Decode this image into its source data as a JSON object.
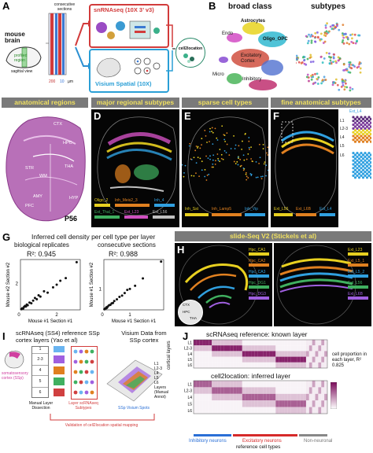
{
  "panelA": {
    "letter": "A",
    "mouse_brain": "mouse brain",
    "profiled_region": "profiled region",
    "sagittal_view": "sagittal view",
    "consecutive_sections": "consecutive sections",
    "dim1": "200",
    "dim2": "10",
    "dim_unit": "µm",
    "snrnaseq": "snRNAseq (10X 3’ v3)",
    "visium": "Visium Spatial (10X)",
    "cell2location": "cell2location"
  },
  "panelB": {
    "letter": "B",
    "title_left": "broad class",
    "title_right": "subtypes",
    "labels": [
      "Astrocytes",
      "Endo",
      "Oligo_OPC",
      "Excitatory Cortex",
      "Micro",
      "Inhibitory"
    ]
  },
  "row2": {
    "headers": [
      "anatomical regions",
      "major regional subtypes",
      "sparse cell types",
      "fine anatomical subtypes"
    ],
    "letters": [
      "C",
      "D",
      "E",
      "F"
    ],
    "panelC_regions": [
      "CTX",
      "HPC",
      "STR",
      "WM",
      "THA",
      "AMY",
      "HYP",
      "PFC"
    ],
    "panelC_age": "P56",
    "panelD_legend": [
      "Oligo_2",
      "Inh_Meis2_3",
      "Inh_4",
      "Ext_Thal_1",
      "Ext_L23",
      "Ext_L56"
    ],
    "panelE_legend": [
      "Inh_Sst",
      "Inh_Lamp5",
      "Inh_Vip"
    ],
    "panelF_legend": [
      "Ext_L56",
      "Ext_L6B",
      "Ext_L4"
    ],
    "panelF_inset_title": "Ext_L4",
    "panelF_layers": [
      "L1",
      "L2-3",
      "L4",
      "L5",
      "L6"
    ]
  },
  "panelG": {
    "letter": "G",
    "title": "Inferred cell density per cell type per layer",
    "left_title": "biological replicates",
    "right_title": "consecutive sections",
    "left_r2": "R²: 0.945",
    "right_r2": "R²: 0.988",
    "left_ylabel": "Mouse #2 Section #2",
    "left_xlabel": "Mouse #1 Section #1",
    "right_ylabel": "Mouse #1 Section #2",
    "right_xlabel": "Mouse #1 Section #1",
    "ticks_left": [
      "0",
      "2"
    ],
    "ticks_right": [
      "0",
      "1"
    ]
  },
  "chart_data": [
    {
      "type": "scatter",
      "title": "biological replicates",
      "xlabel": "Mouse #1 Section #1",
      "ylabel": "Mouse #2 Section #2",
      "x": [
        0.05,
        0.1,
        0.15,
        0.2,
        0.25,
        0.3,
        0.35,
        0.4,
        0.5,
        0.6,
        0.7,
        0.8,
        0.9,
        1.0,
        1.1,
        1.3,
        1.5,
        1.8,
        2.0,
        2.2,
        2.5,
        3.1
      ],
      "y": [
        0.05,
        0.12,
        0.1,
        0.22,
        0.3,
        0.25,
        0.4,
        0.35,
        0.55,
        0.5,
        0.7,
        0.9,
        0.8,
        1.1,
        1.0,
        1.4,
        1.3,
        1.7,
        1.9,
        2.2,
        2.4,
        3.6
      ],
      "xlim": [
        0,
        3.3
      ],
      "ylim": [
        0,
        3.8
      ]
    },
    {
      "type": "scatter",
      "title": "consecutive sections",
      "xlabel": "Mouse #1 Section #1",
      "ylabel": "Mouse #1 Section #2",
      "x": [
        0.02,
        0.05,
        0.08,
        0.1,
        0.12,
        0.15,
        0.2,
        0.25,
        0.3,
        0.35,
        0.4,
        0.5,
        0.6,
        0.7,
        0.8,
        0.9,
        1.0,
        1.2,
        1.5,
        2.2
      ],
      "y": [
        0.03,
        0.06,
        0.07,
        0.12,
        0.1,
        0.16,
        0.22,
        0.24,
        0.31,
        0.33,
        0.42,
        0.5,
        0.62,
        0.68,
        0.8,
        0.95,
        1.0,
        1.15,
        1.5,
        2.3
      ],
      "xlim": [
        0,
        2.3
      ],
      "ylim": [
        0,
        2.4
      ]
    }
  ],
  "panelH": {
    "letter": "H",
    "header": "slide-Seq V2 (Stickels et al)",
    "left_legend": [
      "Hpc_CA1",
      "Hpc_CA2",
      "Hpc_CA3",
      "Hpc_DG1",
      "Hpc_DG3"
    ],
    "right_legend": [
      "Ext_L23",
      "Ext_L5_1",
      "Ext_L5_2",
      "Ext_L56",
      "Ext_L6B"
    ],
    "inset_labels": [
      "CTX",
      "HPC",
      "THA"
    ]
  },
  "panelI": {
    "letter": "I",
    "title": "scRNAseq (SS4) reference SSp cortex layers (Yao et al)",
    "visium_title": "Visium Data from SSp cortex",
    "somato": "somatosensory cortex (SSp)",
    "layers": [
      "1",
      "2-3",
      "4",
      "5",
      "6"
    ],
    "manual_dissection": "Manual Layer Dissection",
    "layer_subtypes": "Layer scRNAseq Subtypes",
    "ssp_spots": "SSp Visium Spots",
    "legend_title": "Layers (Manual Annot)",
    "legend_layers": [
      "L1",
      "L2-3",
      "L4",
      "L5",
      "L6"
    ],
    "validation": "Validation of cell2location spatial mapping"
  },
  "panelJ": {
    "letter": "J",
    "top_title": "scRNAseq reference: known layer",
    "bottom_title": "cell2location: inferred layer",
    "ylabel": "cortical layers",
    "rows": [
      "L1",
      "L2-3",
      "L4",
      "L5",
      "L6"
    ],
    "cbar_label": "cell proportion in each layer, R² 0.825",
    "xlabel": "reference cell types",
    "groups": [
      "Inhibitory neurons",
      "Excitatory neurons",
      "Non-neuronal"
    ],
    "group_colors": [
      "#2a6fd6",
      "#d62a2a",
      "#888888"
    ]
  }
}
